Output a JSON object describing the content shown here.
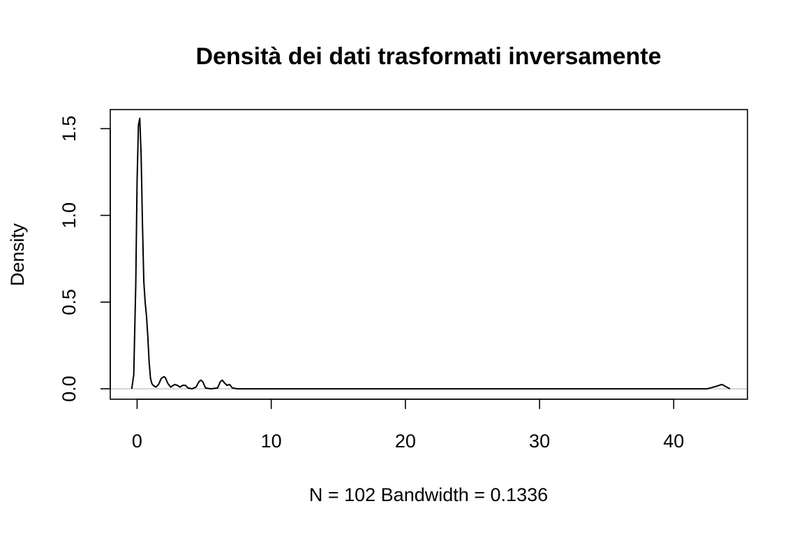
{
  "chart_data": {
    "type": "line",
    "title": "Densità dei dati trasformati inversamente",
    "xlabel": "N = 102   Bandwidth = 0.1336",
    "ylabel": "Density",
    "xlim": [
      -2,
      45.5
    ],
    "ylim": [
      -0.06,
      1.61
    ],
    "x_ticks": [
      0,
      10,
      20,
      30,
      40
    ],
    "x_tick_labels": [
      "0",
      "10",
      "20",
      "30",
      "40"
    ],
    "y_ticks": [
      0,
      0.5,
      1,
      1.5
    ],
    "y_tick_labels": [
      "0.0",
      "0.5",
      "1.0",
      "1.5"
    ],
    "grid": false,
    "legend": "none",
    "zero_line": true,
    "series": [
      {
        "color": "#000000",
        "x": [
          -0.4,
          -0.25,
          -0.1,
          0.0,
          0.1,
          0.2,
          0.3,
          0.4,
          0.5,
          0.6,
          0.7,
          0.8,
          0.9,
          1.0,
          1.1,
          1.2,
          1.4,
          1.6,
          1.8,
          2.0,
          2.1,
          2.3,
          2.5,
          2.8,
          3.0,
          3.2,
          3.4,
          3.6,
          3.8,
          4.1,
          4.4,
          4.6,
          4.75,
          4.9,
          5.1,
          5.5,
          6.0,
          6.2,
          6.35,
          6.5,
          6.7,
          6.9,
          7.1,
          7.5,
          10,
          20,
          30,
          40,
          42.5,
          43.2,
          43.6,
          43.9,
          44.2
        ],
        "y": [
          0.0,
          0.08,
          0.6,
          1.2,
          1.52,
          1.56,
          1.35,
          0.95,
          0.62,
          0.5,
          0.42,
          0.3,
          0.15,
          0.06,
          0.03,
          0.02,
          0.01,
          0.025,
          0.06,
          0.07,
          0.065,
          0.03,
          0.01,
          0.025,
          0.02,
          0.01,
          0.02,
          0.02,
          0.005,
          0.0,
          0.01,
          0.04,
          0.05,
          0.04,
          0.005,
          0.0,
          0.005,
          0.04,
          0.05,
          0.035,
          0.02,
          0.025,
          0.005,
          0.0,
          0.0,
          0.0,
          0.0,
          0.0,
          0.0,
          0.015,
          0.025,
          0.012,
          0.0
        ]
      }
    ]
  }
}
